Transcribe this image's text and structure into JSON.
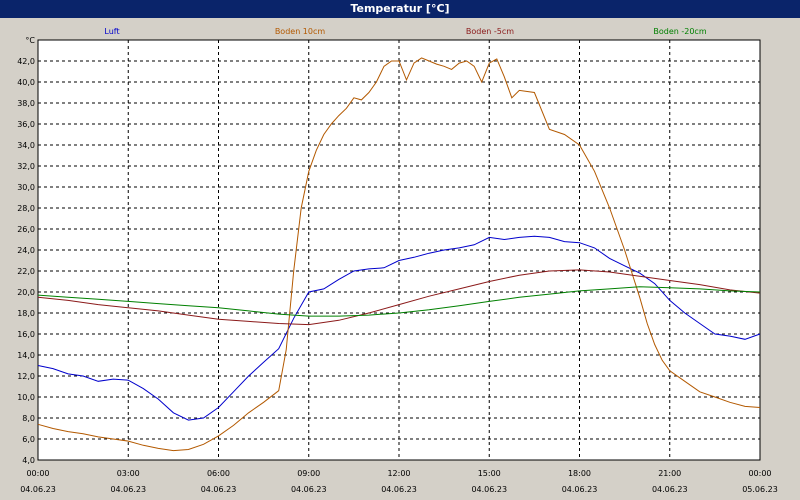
{
  "window": {
    "title": "Temperatur [°C]"
  },
  "chart_data": {
    "type": "line",
    "title": "Temperatur [°C]",
    "ylabel": "°C",
    "xlabel": "",
    "ylim": [
      4,
      44
    ],
    "xlim": [
      0,
      24
    ],
    "y_ticks": [
      "4,0",
      "6,0",
      "8,0",
      "10,0",
      "12,0",
      "14,0",
      "16,0",
      "18,0",
      "20,0",
      "22,0",
      "24,0",
      "26,0",
      "28,0",
      "30,0",
      "32,0",
      "34,0",
      "36,0",
      "38,0",
      "40,0",
      "42,0"
    ],
    "x_ticks": [
      {
        "time": "00:00",
        "date": "04.06.23"
      },
      {
        "time": "03:00",
        "date": "04.06.23"
      },
      {
        "time": "06:00",
        "date": "04.06.23"
      },
      {
        "time": "09:00",
        "date": "04.06.23"
      },
      {
        "time": "12:00",
        "date": "04.06.23"
      },
      {
        "time": "15:00",
        "date": "04.06.23"
      },
      {
        "time": "18:00",
        "date": "04.06.23"
      },
      {
        "time": "21:00",
        "date": "04.06.23"
      },
      {
        "time": "00:00",
        "date": "05.06.23"
      }
    ],
    "grid": true,
    "legend_position": "top",
    "series": [
      {
        "name": "Luft",
        "color": "#0000cc",
        "x": [
          0,
          0.5,
          1,
          1.5,
          2,
          2.5,
          3,
          3.5,
          4,
          4.5,
          5,
          5.5,
          6,
          6.5,
          7,
          7.5,
          8,
          8.5,
          9,
          9.5,
          10,
          10.5,
          11,
          11.5,
          12,
          12.5,
          13,
          13.5,
          14,
          14.5,
          15,
          15.5,
          16,
          16.5,
          17,
          17.5,
          18,
          18.5,
          19,
          19.5,
          20,
          20.5,
          21,
          21.5,
          22,
          22.5,
          23,
          23.5,
          24
        ],
        "y": [
          13.0,
          12.7,
          12.2,
          12.0,
          11.5,
          11.7,
          11.6,
          10.8,
          9.8,
          8.5,
          7.8,
          8.0,
          9.0,
          10.5,
          12.0,
          13.3,
          14.6,
          17.5,
          20.0,
          20.3,
          21.2,
          22.0,
          22.2,
          22.3,
          23.0,
          23.3,
          23.7,
          24.0,
          24.2,
          24.5,
          25.2,
          25.0,
          25.2,
          25.3,
          25.2,
          24.8,
          24.7,
          24.2,
          23.2,
          22.5,
          21.8,
          20.8,
          19.2,
          18.0,
          17.0,
          16.0,
          15.8,
          15.5,
          16.0
        ]
      },
      {
        "name": "Boden 10cm",
        "color": "#b35900",
        "x": [
          0,
          0.5,
          1,
          1.5,
          2,
          2.5,
          3,
          3.5,
          4,
          4.5,
          5,
          5.5,
          6,
          6.5,
          7,
          7.5,
          8,
          8.25,
          8.5,
          8.75,
          9,
          9.25,
          9.5,
          9.75,
          10,
          10.25,
          10.5,
          10.75,
          11,
          11.25,
          11.5,
          11.75,
          12,
          12.25,
          12.5,
          12.75,
          13,
          13.25,
          13.5,
          13.75,
          14,
          14.25,
          14.5,
          14.75,
          15,
          15.25,
          15.5,
          15.75,
          16,
          16.5,
          17,
          17.5,
          18,
          18.5,
          19,
          19.5,
          20,
          20.25,
          20.5,
          20.75,
          21,
          21.5,
          22,
          22.5,
          23,
          23.5,
          24
        ],
        "y": [
          7.4,
          7.0,
          6.7,
          6.5,
          6.2,
          6.0,
          5.8,
          5.4,
          5.1,
          4.9,
          5.0,
          5.5,
          6.3,
          7.3,
          8.5,
          9.5,
          10.6,
          14.5,
          22.0,
          28.0,
          31.5,
          33.5,
          35.0,
          36.0,
          36.8,
          37.5,
          38.5,
          38.3,
          39.0,
          40.0,
          41.5,
          42.0,
          42.0,
          40.2,
          41.8,
          42.3,
          42.0,
          41.7,
          41.5,
          41.2,
          41.8,
          42.0,
          41.5,
          40.0,
          41.8,
          42.2,
          40.5,
          38.5,
          39.2,
          39.0,
          35.5,
          35.0,
          34.0,
          31.5,
          28.0,
          24.0,
          19.5,
          17.0,
          15.0,
          13.5,
          12.5,
          11.5,
          10.5,
          10.0,
          9.5,
          9.1,
          9.0
        ]
      },
      {
        "name": "Boden -5cm",
        "color": "#8b1a1a",
        "x": [
          0,
          1,
          2,
          3,
          4,
          5,
          6,
          7,
          8,
          9,
          10,
          11,
          12,
          13,
          14,
          15,
          16,
          17,
          18,
          19,
          20,
          21,
          22,
          23,
          24
        ],
        "y": [
          19.5,
          19.2,
          18.8,
          18.5,
          18.2,
          17.8,
          17.4,
          17.2,
          17.0,
          16.9,
          17.3,
          18.0,
          18.8,
          19.6,
          20.3,
          21.0,
          21.6,
          22.0,
          22.1,
          21.9,
          21.5,
          21.1,
          20.7,
          20.2,
          19.9
        ]
      },
      {
        "name": "Boden -20cm",
        "color": "#008000",
        "x": [
          0,
          1,
          2,
          3,
          4,
          5,
          6,
          7,
          8,
          9,
          10,
          11,
          12,
          13,
          14,
          15,
          16,
          17,
          18,
          19,
          20,
          21,
          22,
          23,
          24
        ],
        "y": [
          19.7,
          19.5,
          19.3,
          19.1,
          18.9,
          18.7,
          18.5,
          18.2,
          17.9,
          17.7,
          17.7,
          17.8,
          18.0,
          18.3,
          18.7,
          19.1,
          19.5,
          19.8,
          20.1,
          20.3,
          20.5,
          20.4,
          20.3,
          20.1,
          20.0
        ]
      }
    ]
  }
}
